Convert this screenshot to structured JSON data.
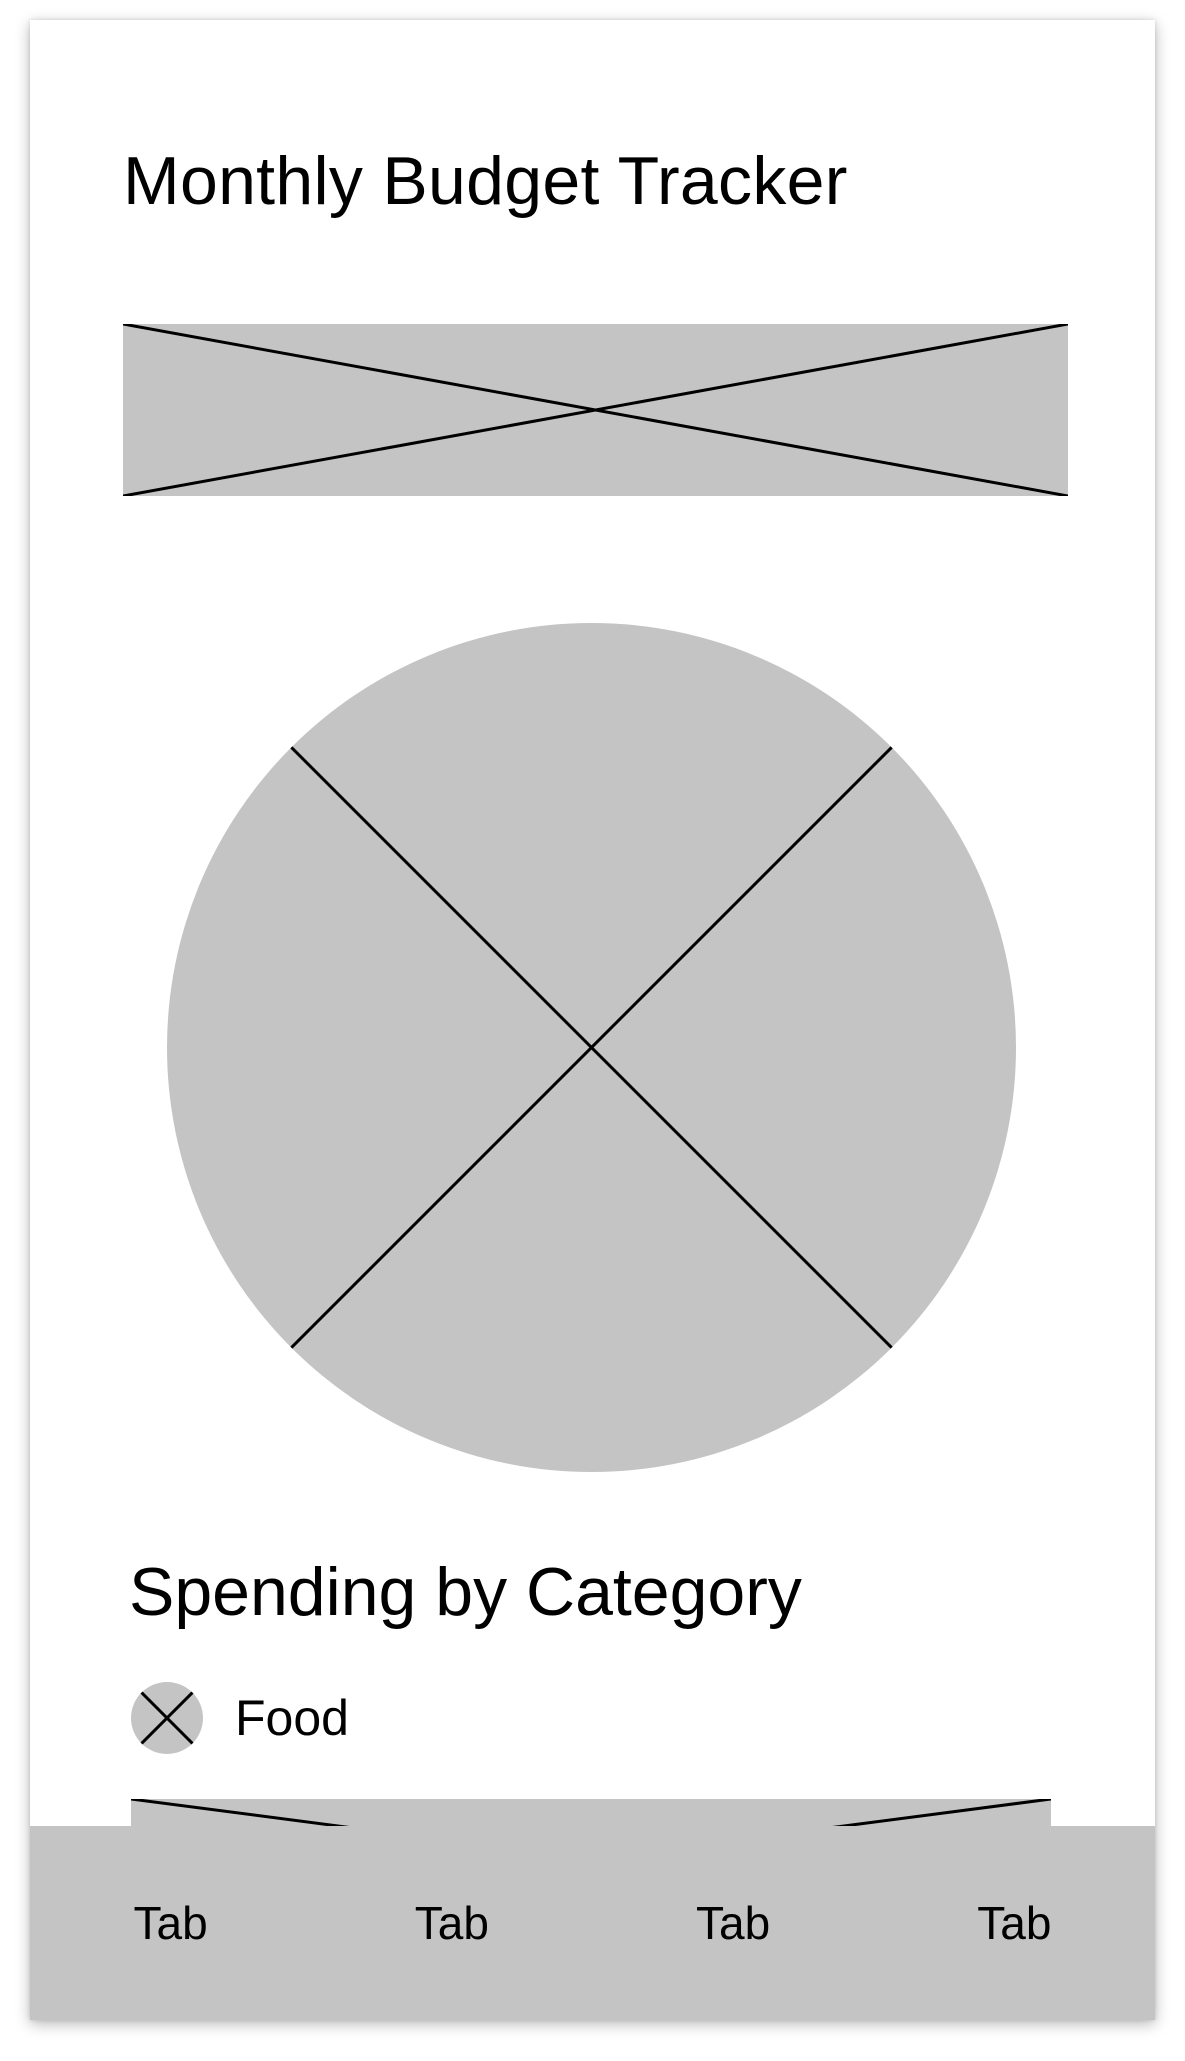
{
  "screen": {
    "title": "Monthly Budget Tracker",
    "banner_icon": "image-placeholder-icon",
    "chart_icon": "image-placeholder-icon"
  },
  "spending": {
    "heading": "Spending by Category",
    "legend": [
      {
        "label": "Food",
        "icon": "image-placeholder-icon"
      }
    ]
  },
  "tab_bar": {
    "tabs": [
      {
        "label": "Tab"
      },
      {
        "label": "Tab"
      },
      {
        "label": "Tab"
      },
      {
        "label": "Tab"
      }
    ]
  },
  "colors": {
    "placeholder_fill": "#c4c4c4",
    "stroke": "#000000",
    "background": "#ffffff"
  }
}
